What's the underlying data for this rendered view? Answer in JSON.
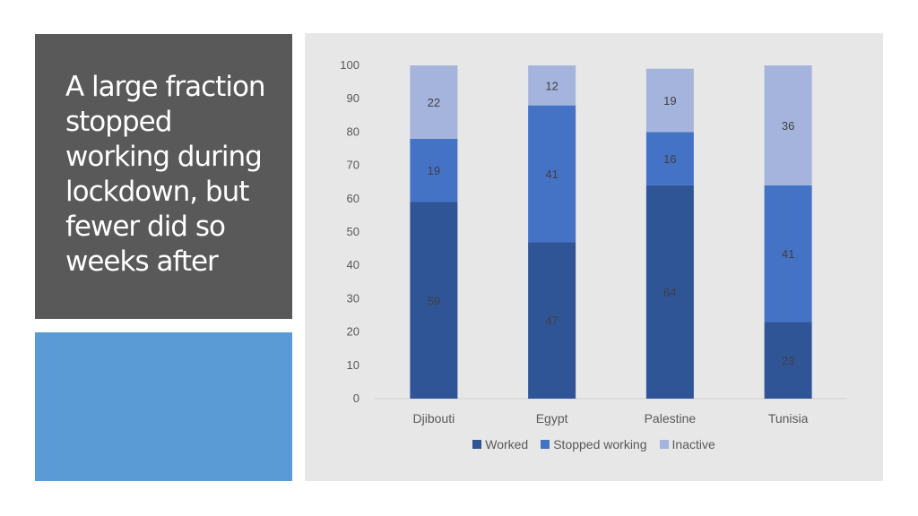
{
  "slide": {
    "title": "A large fraction\nstopped\nworking during\nlockdown, but\nfewer did so\nweeks after",
    "colors": {
      "title_bg": "#595959",
      "accent": "#5b9bd5",
      "chart_bg": "#e7e7e7"
    }
  },
  "chart_data": {
    "type": "bar",
    "stacked": true,
    "categories": [
      "Djibouti",
      "Egypt",
      "Palestine",
      "Tunisia"
    ],
    "series": [
      {
        "name": "Worked",
        "values": [
          59,
          47,
          64,
          23
        ],
        "color": "#2f5597"
      },
      {
        "name": "Stopped working",
        "values": [
          19,
          41,
          16,
          41
        ],
        "color": "#4472c4"
      },
      {
        "name": "Inactive",
        "values": [
          22,
          12,
          19,
          36
        ],
        "color": "#a4b4dc"
      }
    ],
    "ylim": [
      0,
      100
    ],
    "yticks": [
      0,
      10,
      20,
      30,
      40,
      50,
      60,
      70,
      80,
      90,
      100
    ],
    "grid": false,
    "legend": "bottom"
  }
}
